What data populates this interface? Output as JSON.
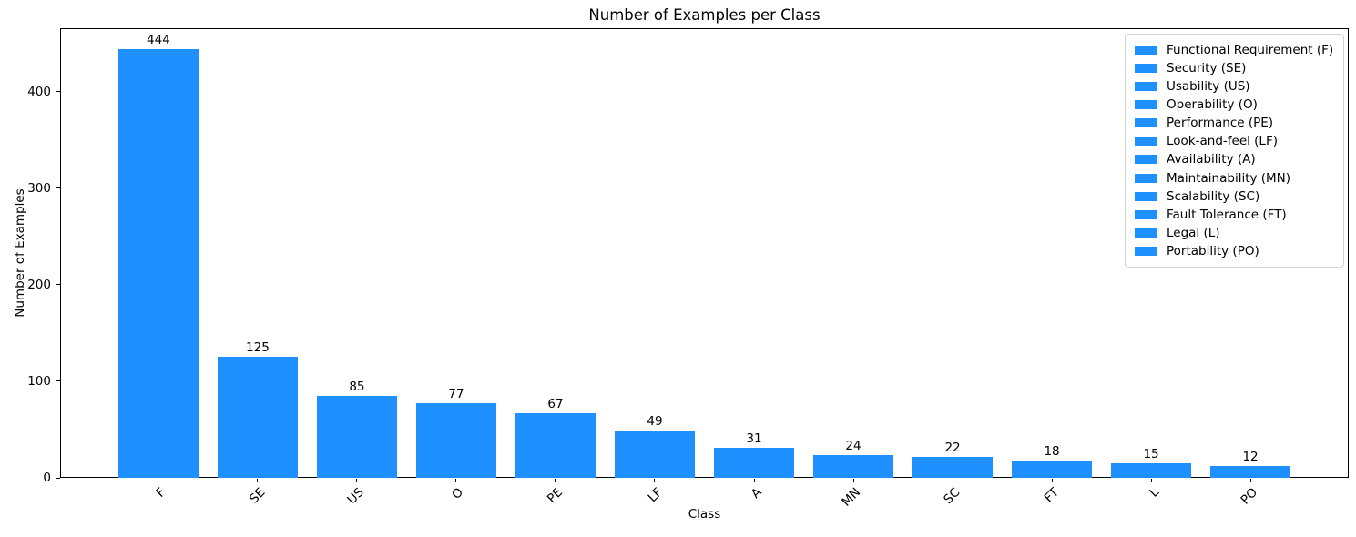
{
  "chart_data": {
    "type": "bar",
    "title": "Number of Examples per Class",
    "xlabel": "Class",
    "ylabel": "Number of Examples",
    "categories": [
      "F",
      "SE",
      "US",
      "O",
      "PE",
      "LF",
      "A",
      "MN",
      "SC",
      "FT",
      "L",
      "PO"
    ],
    "values": [
      444,
      125,
      85,
      77,
      67,
      49,
      31,
      24,
      22,
      18,
      15,
      12
    ],
    "bar_labels": [
      444,
      125,
      85,
      77,
      67,
      49,
      31,
      24,
      22,
      18,
      15,
      12
    ],
    "yticks": [
      0,
      100,
      200,
      300,
      400
    ],
    "ylim": [
      0,
      466
    ],
    "grid": false,
    "bar_color": "#1E90FF",
    "frame_color": "#000000",
    "legend": {
      "position": "upper right",
      "entries": [
        "Functional Requirement (F)",
        "Security (SE)",
        "Usability (US)",
        "Operability (O)",
        "Performance (PE)",
        "Look-and-feel (LF)",
        "Availability (A)",
        "Maintainability (MN)",
        "Scalability (SC)",
        "Fault Tolerance (FT)",
        "Legal (L)",
        "Portability (PO)"
      ]
    }
  }
}
